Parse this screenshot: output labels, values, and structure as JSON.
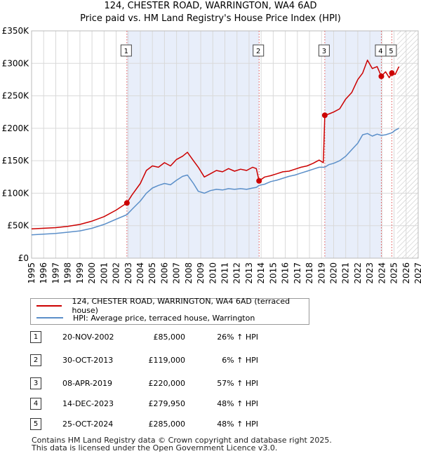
{
  "title_line1": "124, CHESTER ROAD, WARRINGTON, WA4 6AD",
  "title_line2": "Price paid vs. HM Land Registry's House Price Index (HPI)",
  "colors": {
    "property": "#cc0000",
    "hpi": "#5b8fc9",
    "shade": "#e8eefa",
    "marker_line": "#e05050"
  },
  "chart_data": {
    "type": "line",
    "xlim": [
      1995,
      2027
    ],
    "ylim": [
      0,
      350000
    ],
    "y_ticks": [
      0,
      50000,
      100000,
      150000,
      200000,
      250000,
      300000,
      350000
    ],
    "y_tick_labels": [
      "£0",
      "£50K",
      "£100K",
      "£150K",
      "£200K",
      "£250K",
      "£300K",
      "£350K"
    ],
    "x_ticks": [
      1995,
      1996,
      1997,
      1998,
      1999,
      2000,
      2001,
      2002,
      2003,
      2004,
      2005,
      2006,
      2007,
      2008,
      2009,
      2010,
      2011,
      2012,
      2013,
      2014,
      2015,
      2016,
      2017,
      2018,
      2019,
      2020,
      2021,
      2022,
      2023,
      2024,
      2025,
      2026,
      2027
    ],
    "forecast_start": 2025.25,
    "series": [
      {
        "name": "124, CHESTER ROAD, WARRINGTON, WA4 6AD (terraced house)",
        "x": [
          1995,
          1996,
          1997,
          1998,
          1999,
          2000,
          2001,
          2002,
          2002.89,
          2003.3,
          2004,
          2004.5,
          2005,
          2005.5,
          2006,
          2006.5,
          2007,
          2007.5,
          2007.9,
          2008.4,
          2008.8,
          2009.3,
          2009.8,
          2010.3,
          2010.8,
          2011.3,
          2011.8,
          2012.3,
          2012.8,
          2013.3,
          2013.6,
          2013.83,
          2014.3,
          2014.8,
          2015.3,
          2015.8,
          2016.3,
          2016.8,
          2017.3,
          2017.8,
          2018.3,
          2018.8,
          2019.15,
          2019.27,
          2019.6,
          2020,
          2020.5,
          2021,
          2021.5,
          2022,
          2022.4,
          2022.8,
          2023.2,
          2023.6,
          2023.95,
          2024.3,
          2024.6,
          2024.82,
          2025.1,
          2025.4
        ],
        "values": [
          45000,
          46000,
          47000,
          49000,
          52000,
          57000,
          64000,
          74000,
          85000,
          97000,
          115000,
          135000,
          142000,
          140000,
          147000,
          142000,
          152000,
          157000,
          163000,
          150000,
          140000,
          125000,
          130000,
          135000,
          133000,
          138000,
          134000,
          137000,
          135000,
          140000,
          138000,
          119000,
          125000,
          127000,
          130000,
          133000,
          134000,
          137000,
          140000,
          142000,
          146000,
          151000,
          147000,
          220000,
          222000,
          225000,
          230000,
          245000,
          255000,
          275000,
          285000,
          305000,
          292000,
          295000,
          279950,
          287000,
          278000,
          285000,
          283000,
          295000
        ]
      },
      {
        "name": "HPI: Average price, terraced house, Warrington",
        "x": [
          1995,
          1996,
          1997,
          1998,
          1999,
          2000,
          2001,
          2002,
          2002.89,
          2003.3,
          2004,
          2004.5,
          2005,
          2005.5,
          2006,
          2006.5,
          2007,
          2007.5,
          2007.9,
          2008.4,
          2008.8,
          2009.3,
          2009.8,
          2010.3,
          2010.8,
          2011.3,
          2011.8,
          2012.3,
          2012.8,
          2013.3,
          2013.6,
          2013.83,
          2014.3,
          2014.8,
          2015.3,
          2015.8,
          2016.3,
          2016.8,
          2017.3,
          2017.8,
          2018.3,
          2018.8,
          2019.27,
          2019.6,
          2020,
          2020.5,
          2021,
          2021.5,
          2022,
          2022.4,
          2022.8,
          2023.2,
          2023.6,
          2023.95,
          2024.3,
          2024.82,
          2025.1,
          2025.4
        ],
        "values": [
          36000,
          37000,
          38000,
          40000,
          42000,
          46000,
          52000,
          60000,
          67000,
          75000,
          88000,
          100000,
          108000,
          112000,
          115000,
          113000,
          120000,
          126000,
          128000,
          115000,
          103000,
          100000,
          104000,
          106000,
          105000,
          107000,
          106000,
          107000,
          106000,
          108000,
          109000,
          112000,
          114000,
          118000,
          120000,
          123000,
          126000,
          128000,
          131000,
          134000,
          137000,
          140000,
          140000,
          144000,
          146000,
          150000,
          157000,
          167000,
          177000,
          190000,
          192000,
          188000,
          191000,
          189000,
          190000,
          193000,
          197000,
          200000
        ]
      }
    ],
    "sales": [
      {
        "label": "1",
        "x": 2002.89,
        "price": 85000
      },
      {
        "label": "2",
        "x": 2013.83,
        "price": 119000
      },
      {
        "label": "3",
        "x": 2019.27,
        "price": 220000
      },
      {
        "label": "4",
        "x": 2023.95,
        "price": 279950
      },
      {
        "label": "5",
        "x": 2024.82,
        "price": 285000
      }
    ],
    "shaded_periods": [
      [
        2002.89,
        2013.83
      ],
      [
        2019.27,
        2023.95
      ]
    ],
    "legend_position": "below"
  },
  "legend": {
    "property_label": "124, CHESTER ROAD, WARRINGTON, WA4 6AD (terraced house)",
    "hpi_label": "HPI: Average price, terraced house, Warrington"
  },
  "transactions": [
    {
      "num": "1",
      "date": "20-NOV-2002",
      "price": "£85,000",
      "hpi": "26% ↑ HPI"
    },
    {
      "num": "2",
      "date": "30-OCT-2013",
      "price": "£119,000",
      "hpi": "6% ↑ HPI"
    },
    {
      "num": "3",
      "date": "08-APR-2019",
      "price": "£220,000",
      "hpi": "57% ↑ HPI"
    },
    {
      "num": "4",
      "date": "14-DEC-2023",
      "price": "£279,950",
      "hpi": "48% ↑ HPI"
    },
    {
      "num": "5",
      "date": "25-OCT-2024",
      "price": "£285,000",
      "hpi": "48% ↑ HPI"
    }
  ],
  "footer": {
    "line1": "Contains HM Land Registry data © Crown copyright and database right 2025.",
    "line2": "This data is licensed under the Open Government Licence v3.0."
  }
}
